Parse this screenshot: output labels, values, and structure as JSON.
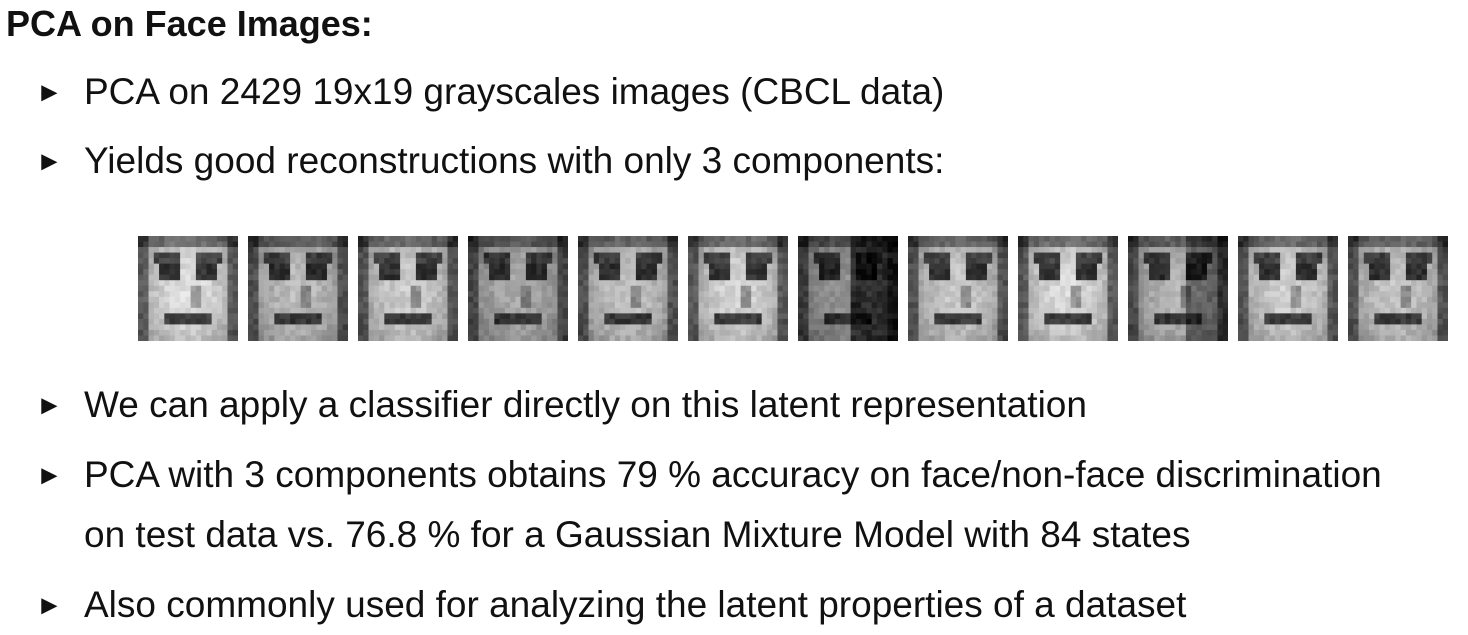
{
  "title": "PCA on Face Images:",
  "bullet_glyph": "►",
  "bullets_top": [
    {
      "text": "PCA on 2429 19x19 grayscales images (CBCL data)"
    },
    {
      "text": "Yields good reconstructions with only 3 components:"
    }
  ],
  "faces": {
    "count": 12,
    "variants": [
      0.92,
      0.78,
      0.85,
      0.7,
      0.8,
      0.88,
      0.6,
      0.83,
      0.9,
      0.75,
      0.86,
      0.82
    ]
  },
  "bullets_bottom": [
    {
      "lines": [
        "We can apply a classifier directly on this latent representation"
      ]
    },
    {
      "lines": [
        "PCA with 3 components obtains 79 % accuracy on face/non-face discrimination",
        "on test data vs. 76.8 % for a Gaussian Mixture Model with 84 states"
      ]
    },
    {
      "lines": [
        "Also commonly used for analyzing the latent properties of a dataset"
      ]
    }
  ]
}
